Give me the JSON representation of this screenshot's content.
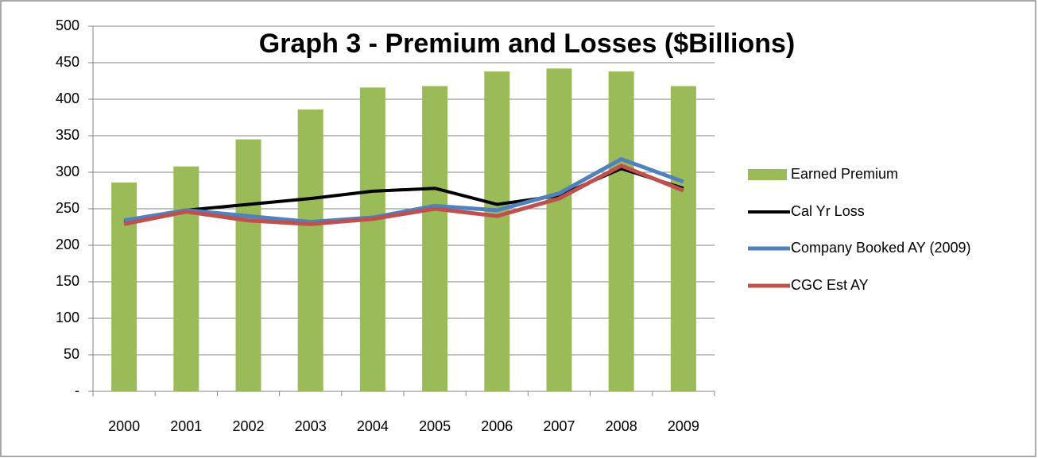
{
  "chart_data": {
    "type": "bar-line",
    "title": "Graph 3 - Premium and Losses ($Billions)",
    "categories": [
      "2000",
      "2001",
      "2002",
      "2003",
      "2004",
      "2005",
      "2006",
      "2007",
      "2008",
      "2009"
    ],
    "series": [
      {
        "name": "Earned Premium",
        "type": "bar",
        "color": "#9bbb59",
        "values": [
          286,
          308,
          345,
          386,
          416,
          418,
          438,
          442,
          438,
          418
        ]
      },
      {
        "name": "Cal Yr Loss",
        "type": "line",
        "color": "#000000",
        "values": [
          232,
          248,
          256,
          264,
          274,
          278,
          256,
          268,
          305,
          278
        ]
      },
      {
        "name": "Company Booked AY (2009)",
        "type": "line",
        "color": "#4f81bd",
        "values": [
          234,
          248,
          240,
          232,
          238,
          254,
          248,
          271,
          318,
          287
        ]
      },
      {
        "name": "CGC Est AY",
        "type": "line",
        "color": "#c0504d",
        "values": [
          229,
          246,
          234,
          229,
          236,
          250,
          240,
          264,
          309,
          275
        ]
      }
    ],
    "ylim": [
      0,
      500
    ],
    "yticks": [
      {
        "value": 0,
        "label": "-"
      },
      50,
      100,
      150,
      200,
      250,
      300,
      350,
      400,
      450,
      500
    ],
    "grid": true,
    "legend": "right"
  }
}
